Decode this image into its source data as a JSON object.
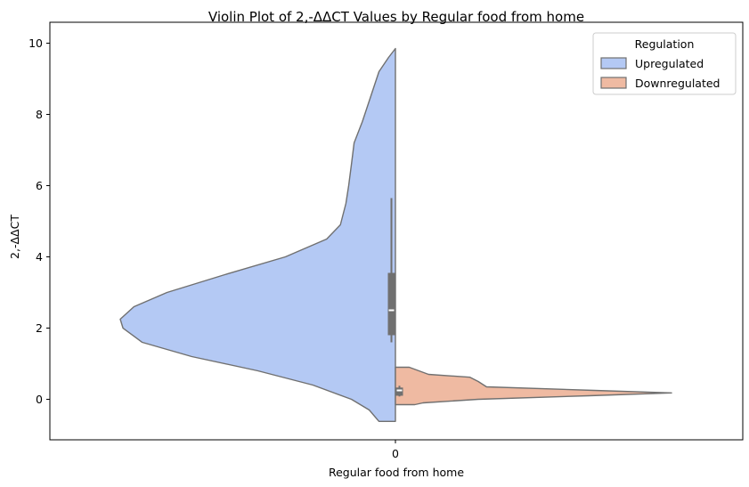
{
  "chart_data": {
    "type": "violin",
    "title": "Violin Plot of 2,-ΔΔCT Values by Regular food from home",
    "xlabel": "Regular food from home",
    "ylabel": "2,-ΔΔCT",
    "categories": [
      "0"
    ],
    "ylim": [
      -1.1,
      10.35
    ],
    "yticks": [
      0,
      2,
      4,
      6,
      8,
      10
    ],
    "split": true,
    "grid": false,
    "legend": {
      "title": "Regulation",
      "placement": "top-right",
      "entries": [
        "Upregulated",
        "Downregulated"
      ]
    },
    "series": [
      {
        "name": "Upregulated",
        "color": "#b4c9f4",
        "side": "left",
        "range": [
          -0.62,
          9.85
        ],
        "density_profile": [
          [
            -0.62,
            0.06
          ],
          [
            -0.3,
            0.095
          ],
          [
            0.0,
            0.16
          ],
          [
            0.4,
            0.3
          ],
          [
            0.8,
            0.5
          ],
          [
            1.2,
            0.74
          ],
          [
            1.6,
            0.92
          ],
          [
            2.0,
            0.99
          ],
          [
            2.25,
            1.0
          ],
          [
            2.6,
            0.95
          ],
          [
            3.0,
            0.83
          ],
          [
            3.5,
            0.62
          ],
          [
            4.0,
            0.4
          ],
          [
            4.5,
            0.25
          ],
          [
            4.9,
            0.2
          ],
          [
            5.2,
            0.19
          ],
          [
            5.5,
            0.18
          ],
          [
            6.0,
            0.17
          ],
          [
            6.6,
            0.16
          ],
          [
            7.2,
            0.15
          ],
          [
            7.8,
            0.12
          ],
          [
            8.5,
            0.09
          ],
          [
            9.2,
            0.06
          ],
          [
            9.6,
            0.025
          ],
          [
            9.85,
            0.0
          ]
        ],
        "box": {
          "whisker_low": 1.6,
          "q1": 1.8,
          "median": 2.5,
          "q3": 3.55,
          "whisker_high": 5.65
        }
      },
      {
        "name": "Downregulated",
        "color": "#efbaa2",
        "side": "right",
        "range": [
          -0.15,
          0.9
        ],
        "density_profile": [
          [
            -0.15,
            0.07
          ],
          [
            -0.1,
            0.1
          ],
          [
            0.0,
            0.3
          ],
          [
            0.1,
            0.7
          ],
          [
            0.18,
            1.0
          ],
          [
            0.25,
            0.72
          ],
          [
            0.35,
            0.33
          ],
          [
            0.5,
            0.3
          ],
          [
            0.62,
            0.27
          ],
          [
            0.7,
            0.12
          ],
          [
            0.9,
            0.05
          ]
        ],
        "box": {
          "whisker_low": 0.08,
          "q1": 0.1,
          "median": 0.25,
          "q3": 0.33,
          "whisker_high": 0.38
        }
      }
    ]
  },
  "colors": {
    "outline": "#707070",
    "box": "#707070",
    "median": "#ffffff"
  }
}
